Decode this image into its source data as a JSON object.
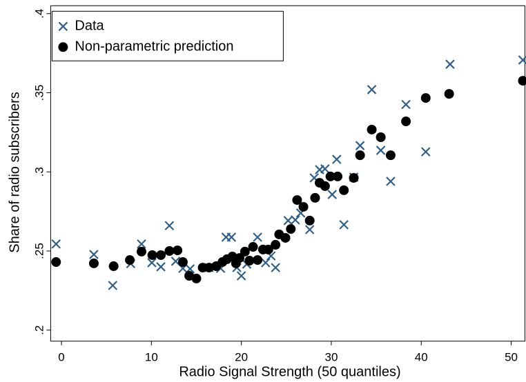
{
  "chart_data": {
    "type": "scatter",
    "x_label": "Radio Signal Strength (50 quantiles)",
    "y_label": "Share of radio subscribers",
    "xlim": [
      -1.2,
      51.6
    ],
    "ylim": [
      0.193,
      0.405
    ],
    "xticks": [
      0,
      10,
      20,
      30,
      40,
      50
    ],
    "yticks": [
      {
        "value": 0.2,
        "label": ".2"
      },
      {
        "value": 0.25,
        "label": ".25"
      },
      {
        "value": 0.3,
        "label": ".3"
      },
      {
        "value": 0.35,
        "label": ".35"
      },
      {
        "value": 0.4,
        "label": ".4"
      }
    ],
    "legend": "top-left",
    "series": [
      {
        "name": "Data",
        "color": "#2e5f8a",
        "marker": "x",
        "x": [
          -0.6,
          3.6,
          5.7,
          7.7,
          8.9,
          10.05,
          11.05,
          12.0,
          12.7,
          13.5,
          14.3,
          16.4,
          17.7,
          18.3,
          18.9,
          19.5,
          20.0,
          20.6,
          21.8,
          22.7,
          23.3,
          23.8,
          25.2,
          26.0,
          26.6,
          27.6,
          28.1,
          28.7,
          29.3,
          30.1,
          30.6,
          31.4,
          32.5,
          33.2,
          34.5,
          35.5,
          36.6,
          38.3,
          40.5,
          43.2,
          51.3
        ],
        "values": [
          0.2544,
          0.2478,
          0.2282,
          0.242,
          0.2544,
          0.2426,
          0.24,
          0.266,
          0.2435,
          0.239,
          0.2387,
          0.2395,
          0.239,
          0.2587,
          0.2587,
          0.2395,
          0.2343,
          0.2417,
          0.2587,
          0.2426,
          0.2469,
          0.2395,
          0.2692,
          0.2696,
          0.274,
          0.2635,
          0.2962,
          0.3014,
          0.3019,
          0.2857,
          0.3079,
          0.2666,
          0.2966,
          0.3166,
          0.352,
          0.3136,
          0.294,
          0.3426,
          0.3127,
          0.368,
          0.3707
        ]
      },
      {
        "name": "Non-parametric prediction",
        "color": "#000000",
        "marker": "dot",
        "x": [
          -0.6,
          3.6,
          5.8,
          7.6,
          8.9,
          10.1,
          11.05,
          12.0,
          12.9,
          13.5,
          14.2,
          15.0,
          15.7,
          16.4,
          17.2,
          17.9,
          18.4,
          19.0,
          19.4,
          19.8,
          20.4,
          20.9,
          21.3,
          21.8,
          22.4,
          23.0,
          23.8,
          24.2,
          24.9,
          25.5,
          26.2,
          26.9,
          27.6,
          28.2,
          28.7,
          29.3,
          29.9,
          30.7,
          31.4,
          32.5,
          33.2,
          34.5,
          35.5,
          36.6,
          38.3,
          40.5,
          43.1,
          51.3
        ],
        "values": [
          0.243,
          0.2422,
          0.2404,
          0.2443,
          0.2496,
          0.2474,
          0.2474,
          0.25,
          0.2504,
          0.243,
          0.2343,
          0.2326,
          0.2395,
          0.2395,
          0.2404,
          0.243,
          0.2448,
          0.2465,
          0.2422,
          0.2456,
          0.2496,
          0.2439,
          0.2526,
          0.2443,
          0.2509,
          0.2509,
          0.2539,
          0.2605,
          0.2583,
          0.2639,
          0.2822,
          0.2779,
          0.2692,
          0.2836,
          0.2931,
          0.291,
          0.2971,
          0.2971,
          0.2884,
          0.2962,
          0.3105,
          0.3267,
          0.3219,
          0.3105,
          0.3319,
          0.3467,
          0.3493,
          0.3576
        ]
      }
    ]
  }
}
